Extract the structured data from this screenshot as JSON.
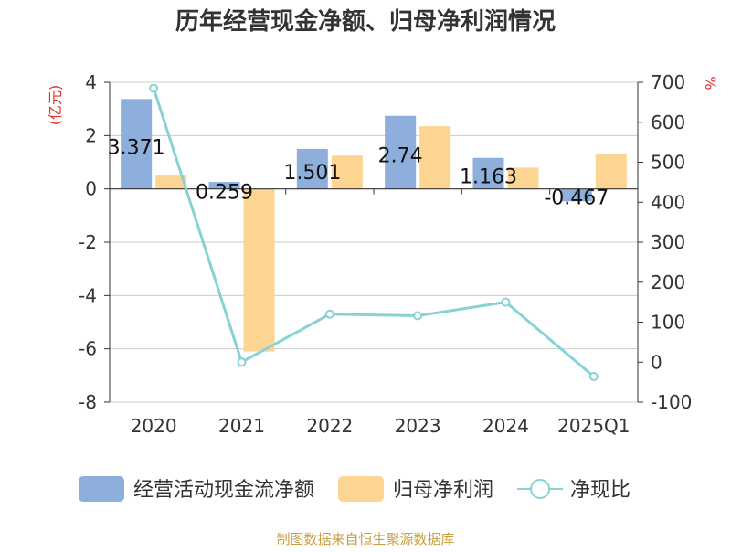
{
  "chart_data": {
    "type": "bar",
    "title": "历年经营现金净额、归母净利润情况",
    "categories": [
      "2020",
      "2021",
      "2022",
      "2023",
      "2024",
      "2025Q1"
    ],
    "left_axis": {
      "unit_label": "(亿元)",
      "ylim": [
        -8,
        4
      ],
      "ticks": [
        "4",
        "2",
        "0",
        "-2",
        "-4",
        "-6",
        "-8"
      ]
    },
    "right_axis": {
      "unit_label": "%",
      "ylim": [
        -100,
        700
      ],
      "ticks": [
        "700",
        "600",
        "500",
        "400",
        "300",
        "200",
        "100",
        "0",
        "-100"
      ]
    },
    "grid": true,
    "legend_position": "bottom",
    "series": [
      {
        "name": "经营活动现金流净额",
        "type": "bar",
        "axis": "left",
        "color": "#8eafdb",
        "values": [
          3.371,
          0.259,
          1.501,
          2.74,
          1.163,
          -0.467
        ],
        "labels": [
          "3.371",
          "0.259",
          "1.501",
          "2.74",
          "1.163",
          "-0.467"
        ]
      },
      {
        "name": "归母净利润",
        "type": "bar",
        "axis": "left",
        "color": "#fdd593",
        "values": [
          0.5,
          -6.1,
          1.25,
          2.35,
          0.8,
          1.3
        ]
      },
      {
        "name": "净现比",
        "type": "line",
        "axis": "right",
        "color": "#88d2d6",
        "values": [
          685,
          0,
          120,
          116,
          150,
          -36
        ]
      }
    ],
    "source": "制图数据来自恒生聚源数据库"
  }
}
